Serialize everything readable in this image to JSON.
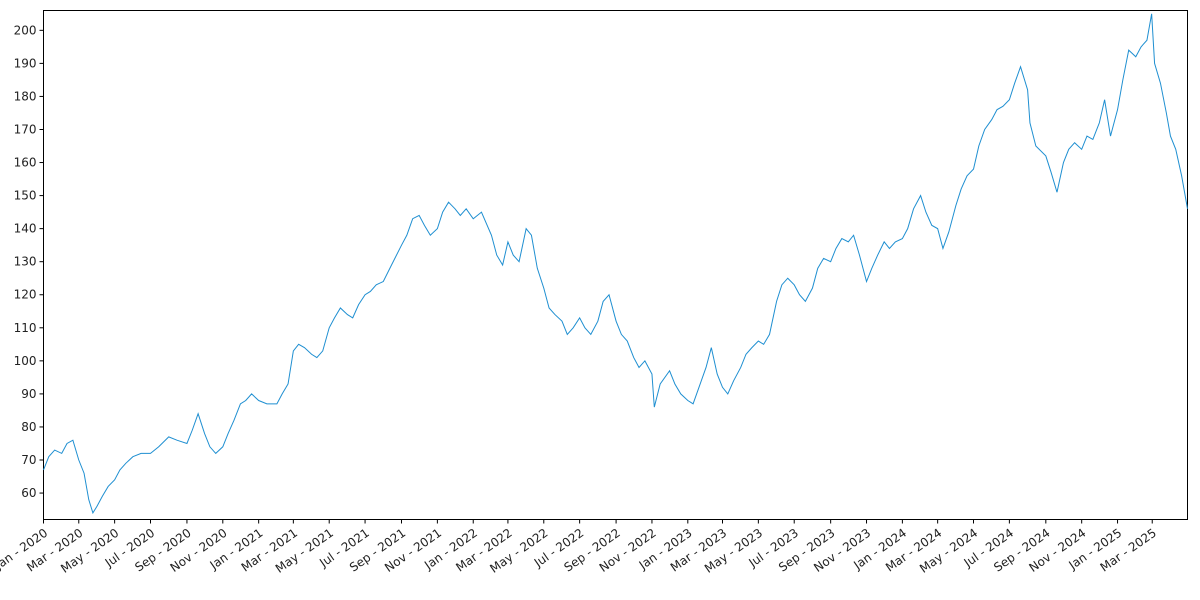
{
  "chart_data": {
    "type": "line",
    "title": "",
    "xlabel": "",
    "ylabel": "",
    "grid": false,
    "legend": "none",
    "line_color": "#1f8fd1",
    "x_range": [
      "2020-01-01",
      "2025-04-30"
    ],
    "ylim": [
      52,
      206
    ],
    "y_ticks": [
      60,
      70,
      80,
      90,
      100,
      110,
      120,
      130,
      140,
      150,
      160,
      170,
      180,
      190,
      200
    ],
    "x_ticks": [
      {
        "date": "2020-01-01",
        "label": "Jan - 2020"
      },
      {
        "date": "2020-03-01",
        "label": "Mar - 2020"
      },
      {
        "date": "2020-05-01",
        "label": "May - 2020"
      },
      {
        "date": "2020-07-01",
        "label": "Jul - 2020"
      },
      {
        "date": "2020-09-01",
        "label": "Sep - 2020"
      },
      {
        "date": "2020-11-01",
        "label": "Nov - 2020"
      },
      {
        "date": "2021-01-01",
        "label": "Jan - 2021"
      },
      {
        "date": "2021-03-01",
        "label": "Mar - 2021"
      },
      {
        "date": "2021-05-01",
        "label": "May - 2021"
      },
      {
        "date": "2021-07-01",
        "label": "Jul - 2021"
      },
      {
        "date": "2021-09-01",
        "label": "Sep - 2021"
      },
      {
        "date": "2021-11-01",
        "label": "Nov - 2021"
      },
      {
        "date": "2022-01-01",
        "label": "Jan - 2022"
      },
      {
        "date": "2022-03-01",
        "label": "Mar - 2022"
      },
      {
        "date": "2022-05-01",
        "label": "May - 2022"
      },
      {
        "date": "2022-07-01",
        "label": "Jul - 2022"
      },
      {
        "date": "2022-09-01",
        "label": "Sep - 2022"
      },
      {
        "date": "2022-11-01",
        "label": "Nov - 2022"
      },
      {
        "date": "2023-01-01",
        "label": "Jan - 2023"
      },
      {
        "date": "2023-03-01",
        "label": "Mar - 2023"
      },
      {
        "date": "2023-05-01",
        "label": "May - 2023"
      },
      {
        "date": "2023-07-01",
        "label": "Jul - 2023"
      },
      {
        "date": "2023-09-01",
        "label": "Sep - 2023"
      },
      {
        "date": "2023-11-01",
        "label": "Nov - 2023"
      },
      {
        "date": "2024-01-01",
        "label": "Jan - 2024"
      },
      {
        "date": "2024-03-01",
        "label": "Mar - 2024"
      },
      {
        "date": "2024-05-01",
        "label": "May - 2024"
      },
      {
        "date": "2024-07-01",
        "label": "Jul - 2024"
      },
      {
        "date": "2024-09-01",
        "label": "Sep - 2024"
      },
      {
        "date": "2024-11-01",
        "label": "Nov - 2024"
      },
      {
        "date": "2025-01-01",
        "label": "Jan - 2025"
      },
      {
        "date": "2025-03-01",
        "label": "Mar - 2025"
      }
    ],
    "series": [
      {
        "points": [
          [
            "2020-01-01",
            67
          ],
          [
            "2020-01-10",
            71
          ],
          [
            "2020-01-20",
            73
          ],
          [
            "2020-02-01",
            72
          ],
          [
            "2020-02-10",
            75
          ],
          [
            "2020-02-20",
            76
          ],
          [
            "2020-03-01",
            70
          ],
          [
            "2020-03-10",
            66
          ],
          [
            "2020-03-18",
            58
          ],
          [
            "2020-03-25",
            54
          ],
          [
            "2020-04-01",
            56
          ],
          [
            "2020-04-10",
            59
          ],
          [
            "2020-04-20",
            62
          ],
          [
            "2020-05-01",
            64
          ],
          [
            "2020-05-10",
            67
          ],
          [
            "2020-05-20",
            69
          ],
          [
            "2020-06-01",
            71
          ],
          [
            "2020-06-15",
            72
          ],
          [
            "2020-07-01",
            72
          ],
          [
            "2020-07-15",
            74
          ],
          [
            "2020-08-01",
            77
          ],
          [
            "2020-08-15",
            76
          ],
          [
            "2020-09-01",
            75
          ],
          [
            "2020-09-10",
            79
          ],
          [
            "2020-09-20",
            84
          ],
          [
            "2020-10-01",
            78
          ],
          [
            "2020-10-10",
            74
          ],
          [
            "2020-10-20",
            72
          ],
          [
            "2020-11-01",
            74
          ],
          [
            "2020-11-10",
            78
          ],
          [
            "2020-11-20",
            82
          ],
          [
            "2020-12-01",
            87
          ],
          [
            "2020-12-10",
            88
          ],
          [
            "2020-12-20",
            90
          ],
          [
            "2021-01-01",
            88
          ],
          [
            "2021-01-15",
            87
          ],
          [
            "2021-02-01",
            87
          ],
          [
            "2021-02-10",
            90
          ],
          [
            "2021-02-20",
            93
          ],
          [
            "2021-03-01",
            103
          ],
          [
            "2021-03-10",
            105
          ],
          [
            "2021-03-20",
            104
          ],
          [
            "2021-04-01",
            102
          ],
          [
            "2021-04-10",
            101
          ],
          [
            "2021-04-20",
            103
          ],
          [
            "2021-05-01",
            110
          ],
          [
            "2021-05-10",
            113
          ],
          [
            "2021-05-20",
            116
          ],
          [
            "2021-06-01",
            114
          ],
          [
            "2021-06-10",
            113
          ],
          [
            "2021-06-20",
            117
          ],
          [
            "2021-07-01",
            120
          ],
          [
            "2021-07-10",
            121
          ],
          [
            "2021-07-20",
            123
          ],
          [
            "2021-08-01",
            124
          ],
          [
            "2021-08-15",
            129
          ],
          [
            "2021-09-01",
            135
          ],
          [
            "2021-09-10",
            138
          ],
          [
            "2021-09-20",
            143
          ],
          [
            "2021-10-01",
            144
          ],
          [
            "2021-10-10",
            141
          ],
          [
            "2021-10-20",
            138
          ],
          [
            "2021-11-01",
            140
          ],
          [
            "2021-11-10",
            145
          ],
          [
            "2021-11-20",
            148
          ],
          [
            "2021-12-01",
            146
          ],
          [
            "2021-12-10",
            144
          ],
          [
            "2021-12-20",
            146
          ],
          [
            "2022-01-01",
            143
          ],
          [
            "2022-01-15",
            145
          ],
          [
            "2022-02-01",
            138
          ],
          [
            "2022-02-10",
            132
          ],
          [
            "2022-02-20",
            129
          ],
          [
            "2022-03-01",
            136
          ],
          [
            "2022-03-10",
            132
          ],
          [
            "2022-03-20",
            130
          ],
          [
            "2022-04-01",
            140
          ],
          [
            "2022-04-10",
            138
          ],
          [
            "2022-04-20",
            128
          ],
          [
            "2022-05-01",
            122
          ],
          [
            "2022-05-10",
            116
          ],
          [
            "2022-05-20",
            114
          ],
          [
            "2022-06-01",
            112
          ],
          [
            "2022-06-10",
            108
          ],
          [
            "2022-06-20",
            110
          ],
          [
            "2022-07-01",
            113
          ],
          [
            "2022-07-10",
            110
          ],
          [
            "2022-07-20",
            108
          ],
          [
            "2022-08-01",
            112
          ],
          [
            "2022-08-10",
            118
          ],
          [
            "2022-08-20",
            120
          ],
          [
            "2022-09-01",
            112
          ],
          [
            "2022-09-10",
            108
          ],
          [
            "2022-09-20",
            106
          ],
          [
            "2022-10-01",
            101
          ],
          [
            "2022-10-10",
            98
          ],
          [
            "2022-10-20",
            100
          ],
          [
            "2022-11-01",
            96
          ],
          [
            "2022-11-05",
            86
          ],
          [
            "2022-11-15",
            93
          ],
          [
            "2022-12-01",
            97
          ],
          [
            "2022-12-10",
            93
          ],
          [
            "2022-12-20",
            90
          ],
          [
            "2023-01-01",
            88
          ],
          [
            "2023-01-10",
            87
          ],
          [
            "2023-01-20",
            92
          ],
          [
            "2023-02-01",
            98
          ],
          [
            "2023-02-10",
            104
          ],
          [
            "2023-02-20",
            96
          ],
          [
            "2023-03-01",
            92
          ],
          [
            "2023-03-10",
            90
          ],
          [
            "2023-03-20",
            94
          ],
          [
            "2023-04-01",
            98
          ],
          [
            "2023-04-10",
            102
          ],
          [
            "2023-04-20",
            104
          ],
          [
            "2023-05-01",
            106
          ],
          [
            "2023-05-10",
            105
          ],
          [
            "2023-05-20",
            108
          ],
          [
            "2023-06-01",
            118
          ],
          [
            "2023-06-10",
            123
          ],
          [
            "2023-06-20",
            125
          ],
          [
            "2023-07-01",
            123
          ],
          [
            "2023-07-10",
            120
          ],
          [
            "2023-07-20",
            118
          ],
          [
            "2023-08-01",
            122
          ],
          [
            "2023-08-10",
            128
          ],
          [
            "2023-08-20",
            131
          ],
          [
            "2023-09-01",
            130
          ],
          [
            "2023-09-10",
            134
          ],
          [
            "2023-09-20",
            137
          ],
          [
            "2023-10-01",
            136
          ],
          [
            "2023-10-10",
            138
          ],
          [
            "2023-10-20",
            132
          ],
          [
            "2023-11-01",
            124
          ],
          [
            "2023-11-10",
            128
          ],
          [
            "2023-11-20",
            132
          ],
          [
            "2023-12-01",
            136
          ],
          [
            "2023-12-10",
            134
          ],
          [
            "2023-12-20",
            136
          ],
          [
            "2024-01-01",
            137
          ],
          [
            "2024-01-10",
            140
          ],
          [
            "2024-01-20",
            146
          ],
          [
            "2024-02-01",
            150
          ],
          [
            "2024-02-10",
            145
          ],
          [
            "2024-02-20",
            141
          ],
          [
            "2024-03-01",
            140
          ],
          [
            "2024-03-10",
            134
          ],
          [
            "2024-03-20",
            139
          ],
          [
            "2024-04-01",
            147
          ],
          [
            "2024-04-10",
            152
          ],
          [
            "2024-04-20",
            156
          ],
          [
            "2024-05-01",
            158
          ],
          [
            "2024-05-10",
            165
          ],
          [
            "2024-05-20",
            170
          ],
          [
            "2024-06-01",
            173
          ],
          [
            "2024-06-10",
            176
          ],
          [
            "2024-06-20",
            177
          ],
          [
            "2024-07-01",
            179
          ],
          [
            "2024-07-10",
            184
          ],
          [
            "2024-07-20",
            189
          ],
          [
            "2024-08-01",
            182
          ],
          [
            "2024-08-05",
            172
          ],
          [
            "2024-08-15",
            165
          ],
          [
            "2024-09-01",
            162
          ],
          [
            "2024-09-10",
            157
          ],
          [
            "2024-09-20",
            151
          ],
          [
            "2024-10-01",
            160
          ],
          [
            "2024-10-10",
            164
          ],
          [
            "2024-10-20",
            166
          ],
          [
            "2024-11-01",
            164
          ],
          [
            "2024-11-10",
            168
          ],
          [
            "2024-11-20",
            167
          ],
          [
            "2024-12-01",
            172
          ],
          [
            "2024-12-10",
            179
          ],
          [
            "2024-12-20",
            168
          ],
          [
            "2025-01-01",
            176
          ],
          [
            "2025-01-10",
            185
          ],
          [
            "2025-01-20",
            194
          ],
          [
            "2025-02-01",
            192
          ],
          [
            "2025-02-10",
            195
          ],
          [
            "2025-02-20",
            197
          ],
          [
            "2025-02-28",
            205
          ],
          [
            "2025-03-05",
            190
          ],
          [
            "2025-03-15",
            184
          ],
          [
            "2025-03-25",
            175
          ],
          [
            "2025-04-01",
            168
          ],
          [
            "2025-04-10",
            164
          ],
          [
            "2025-04-20",
            156
          ],
          [
            "2025-04-30",
            146
          ]
        ]
      }
    ]
  }
}
